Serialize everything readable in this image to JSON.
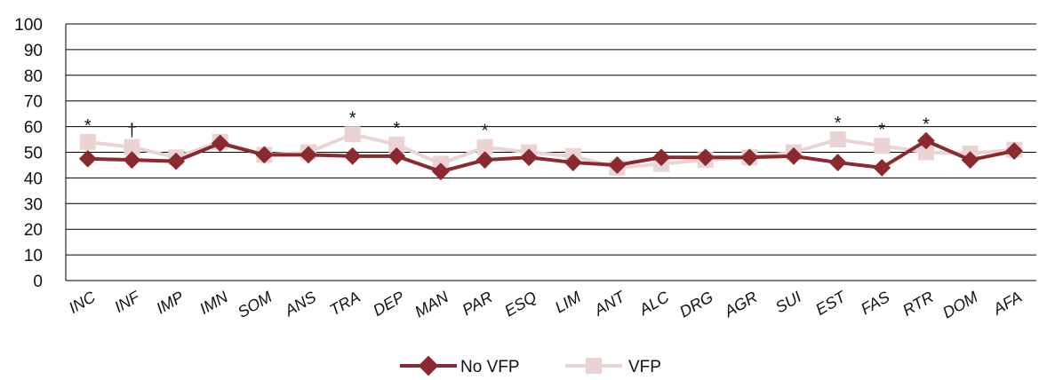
{
  "chart_data": {
    "type": "line",
    "title": "",
    "xlabel": "",
    "ylabel": "",
    "ylim": [
      0,
      100
    ],
    "yticks": [
      0,
      10,
      20,
      30,
      40,
      50,
      60,
      70,
      80,
      90,
      100
    ],
    "grid": "horizontal",
    "legend_position": "bottom",
    "categories": [
      "INC",
      "INF",
      "IMP",
      "IMN",
      "SOM",
      "ANS",
      "TRA",
      "DEP",
      "MAN",
      "PAR",
      "ESQ",
      "LIM",
      "ANT",
      "ALC",
      "DRG",
      "AGR",
      "SUI",
      "EST",
      "FAS",
      "RTR",
      "DOM",
      "AFA"
    ],
    "series": [
      {
        "name": "No VFP",
        "color": "#8b2a2e",
        "marker": "diamond",
        "values": [
          47.5,
          47,
          46.5,
          53.5,
          49,
          49,
          48.5,
          48.5,
          42.5,
          47,
          48,
          46,
          45,
          48,
          48,
          48,
          48.5,
          46,
          44,
          54.5,
          47,
          50.5
        ]
      },
      {
        "name": "VFP",
        "color": "#ecd3d3",
        "marker": "square",
        "values": [
          54,
          52,
          48,
          54,
          49,
          50,
          57,
          53,
          45.5,
          52,
          50,
          48.5,
          44,
          45.5,
          47,
          48,
          50,
          55,
          52.5,
          50,
          49.5,
          51
        ]
      }
    ],
    "annotations": [
      {
        "category": "INC",
        "text": "*"
      },
      {
        "category": "INF",
        "text": "†"
      },
      {
        "category": "TRA",
        "text": "*"
      },
      {
        "category": "DEP",
        "text": "*"
      },
      {
        "category": "PAR",
        "text": "*"
      },
      {
        "category": "EST",
        "text": "*"
      },
      {
        "category": "FAS",
        "text": "*"
      },
      {
        "category": "RTR",
        "text": "*"
      }
    ]
  }
}
